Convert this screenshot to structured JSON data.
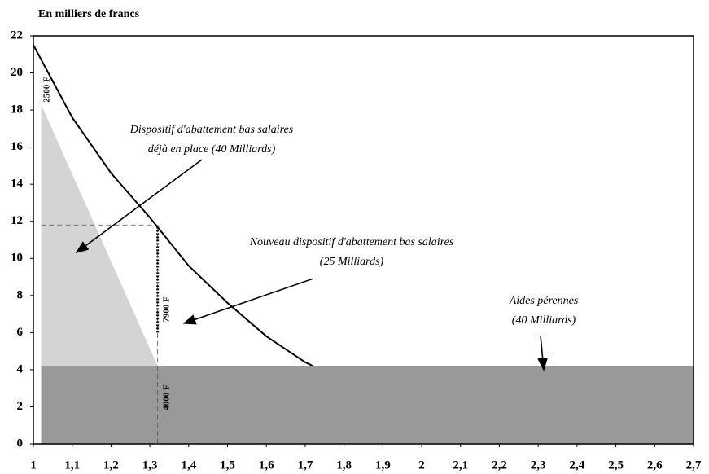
{
  "chart_data": {
    "type": "line",
    "title": "En milliers de francs",
    "xlim": [
      1,
      2.7
    ],
    "xticks": [
      1,
      {
        "value": 1.1,
        "label": "1,1"
      },
      {
        "value": 1.2,
        "label": "1,2"
      },
      {
        "value": 1.3,
        "label": "1,3"
      },
      {
        "value": 1.4,
        "label": "1,4"
      },
      {
        "value": 1.5,
        "label": "1,5"
      },
      {
        "value": 1.6,
        "label": "1,6"
      },
      {
        "value": 1.7,
        "label": "1,7"
      },
      {
        "value": 1.8,
        "label": "1,8"
      },
      {
        "value": 1.9,
        "label": "1,9"
      },
      2,
      {
        "value": 2.1,
        "label": "2,1"
      },
      {
        "value": 2.2,
        "label": "2,2"
      },
      {
        "value": 2.3,
        "label": "2,3"
      },
      {
        "value": 2.4,
        "label": "2,4"
      },
      {
        "value": 2.5,
        "label": "2,5"
      },
      {
        "value": 2.6,
        "label": "2,6"
      },
      {
        "value": 2.7,
        "label": "2,7"
      }
    ],
    "ylim": [
      0,
      22
    ],
    "yticks": [
      0,
      2,
      4,
      6,
      8,
      10,
      12,
      14,
      16,
      18,
      20,
      22
    ],
    "grid": false,
    "series": [
      {
        "color": "#000000",
        "x": [
          1,
          1.1,
          1.2,
          1.3,
          1.4,
          1.5,
          1.6,
          1.7,
          1.72
        ],
        "values": [
          21.5,
          17.6,
          14.6,
          12.2,
          9.6,
          7.6,
          5.8,
          4.4,
          4.2
        ]
      }
    ],
    "areas": [
      {
        "color": "#d4d4d4",
        "x": [
          1.02,
          1.02,
          1.32
        ],
        "values": [
          4.2,
          18.3,
          4.2
        ]
      },
      {
        "color": "#999999",
        "x": [
          1.02,
          1.02,
          2.7,
          2.7
        ],
        "values": [
          0,
          4.2,
          4.2,
          0
        ]
      }
    ],
    "guides": [
      {
        "style": "dashed",
        "x": [
          1.02,
          1.32
        ],
        "values": [
          11.8,
          11.8
        ]
      },
      {
        "style": "dashed",
        "x": [
          1.32,
          1.32
        ],
        "values": [
          0,
          11.8
        ]
      },
      {
        "style": "dotted",
        "x": [
          1.32,
          1.32
        ],
        "values": [
          6,
          11.8
        ]
      }
    ],
    "value_notes": [
      "2500 F",
      "7900 F",
      "4000 F"
    ],
    "annotations": [
      [
        "Dispositif d'abattement bas salaires",
        "déjà en place (40 Milliards)"
      ],
      [
        "Nouveau dispositif d'abattement bas salaires",
        "(25 Milliards)"
      ],
      [
        "Aides pérennes",
        "(40 Milliards)"
      ]
    ]
  }
}
